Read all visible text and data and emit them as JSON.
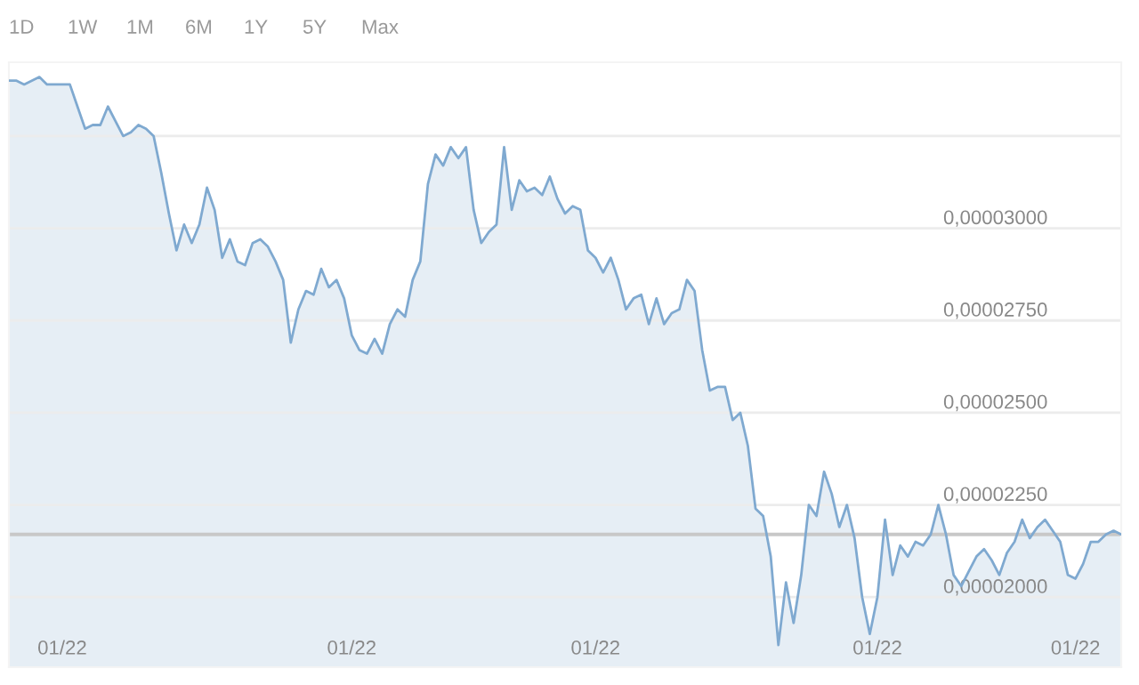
{
  "chart_data": {
    "type": "area",
    "annotations": [
      "1D",
      "1W",
      "1M",
      "6M",
      "1Y",
      "5Y",
      "Max"
    ],
    "categories": [
      null,
      null,
      null,
      null,
      null,
      null,
      null,
      "01/22",
      null,
      null,
      null,
      null,
      null,
      null,
      null,
      null,
      null,
      null,
      null,
      null,
      null,
      null,
      null,
      null,
      null,
      null,
      null,
      null,
      null,
      null,
      null,
      null,
      null,
      null,
      null,
      null,
      null,
      null,
      null,
      null,
      null,
      null,
      null,
      null,
      null,
      "01/22",
      null,
      null,
      null,
      null,
      null,
      null,
      null,
      null,
      null,
      null,
      null,
      null,
      null,
      null,
      null,
      null,
      null,
      null,
      null,
      null,
      null,
      null,
      null,
      null,
      null,
      null,
      null,
      null,
      null,
      null,
      null,
      "01/22",
      null,
      null,
      null,
      null,
      null,
      null,
      null,
      null,
      null,
      null,
      null,
      null,
      null,
      null,
      null,
      null,
      null,
      null,
      null,
      null,
      null,
      null,
      null,
      null,
      null,
      null,
      null,
      null,
      null,
      null,
      null,
      null,
      null,
      null,
      null,
      null,
      "01/22",
      null,
      null,
      null,
      null,
      null,
      null,
      null,
      null,
      null,
      null,
      null,
      null,
      null,
      null,
      null,
      null,
      null,
      null,
      null,
      null,
      null,
      null,
      null,
      null,
      null,
      "01/22",
      null,
      null,
      null,
      null,
      null,
      null
    ],
    "series": [
      {
        "color": "#7fa9d0",
        "values": [
          3.4e-05,
          3.4e-05,
          3.39e-05,
          3.4e-05,
          3.41e-05,
          3.39e-05,
          3.39e-05,
          3.39e-05,
          3.39e-05,
          3.33e-05,
          3.27e-05,
          3.28e-05,
          3.28e-05,
          3.33e-05,
          3.29e-05,
          3.25e-05,
          3.26e-05,
          3.28e-05,
          3.27e-05,
          3.25e-05,
          3.15e-05,
          3.04e-05,
          2.94e-05,
          3.01e-05,
          2.96e-05,
          3.01e-05,
          3.11e-05,
          3.05e-05,
          2.92e-05,
          2.97e-05,
          2.91e-05,
          2.9e-05,
          2.96e-05,
          2.97e-05,
          2.95e-05,
          2.91e-05,
          2.86e-05,
          2.69e-05,
          2.78e-05,
          2.83e-05,
          2.82e-05,
          2.89e-05,
          2.84e-05,
          2.86e-05,
          2.81e-05,
          2.71e-05,
          2.67e-05,
          2.66e-05,
          2.7e-05,
          2.66e-05,
          2.74e-05,
          2.78e-05,
          2.76e-05,
          2.86e-05,
          2.91e-05,
          3.12e-05,
          3.2e-05,
          3.17e-05,
          3.22e-05,
          3.19e-05,
          3.22e-05,
          3.05e-05,
          2.96e-05,
          2.99e-05,
          3.01e-05,
          3.22e-05,
          3.05e-05,
          3.13e-05,
          3.1e-05,
          3.11e-05,
          3.09e-05,
          3.14e-05,
          3.08e-05,
          3.04e-05,
          3.06e-05,
          3.05e-05,
          2.94e-05,
          2.92e-05,
          2.88e-05,
          2.92e-05,
          2.86e-05,
          2.78e-05,
          2.81e-05,
          2.82e-05,
          2.74e-05,
          2.81e-05,
          2.74e-05,
          2.77e-05,
          2.78e-05,
          2.86e-05,
          2.83e-05,
          2.67e-05,
          2.56e-05,
          2.57e-05,
          2.57e-05,
          2.48e-05,
          2.5e-05,
          2.41e-05,
          2.24e-05,
          2.22e-05,
          2.11e-05,
          1.87e-05,
          2.04e-05,
          1.93e-05,
          2.06e-05,
          2.25e-05,
          2.22e-05,
          2.34e-05,
          2.28e-05,
          2.19e-05,
          2.25e-05,
          2.16e-05,
          2e-05,
          1.9e-05,
          2e-05,
          2.21e-05,
          2.06e-05,
          2.14e-05,
          2.11e-05,
          2.15e-05,
          2.14e-05,
          2.17e-05,
          2.25e-05,
          2.17e-05,
          2.06e-05,
          2.03e-05,
          2.07e-05,
          2.11e-05,
          2.13e-05,
          2.1e-05,
          2.06e-05,
          2.12e-05,
          2.15e-05,
          2.21e-05,
          2.16e-05,
          2.19e-05,
          2.21e-05,
          2.18e-05,
          2.15e-05,
          2.06e-05,
          2.05e-05,
          2.09e-05,
          2.15e-05,
          2.15e-05,
          2.17e-05,
          2.18e-05,
          2.17e-05
        ]
      }
    ],
    "ylim": [
      1.81e-05,
      3.45e-05
    ],
    "yticks": [
      {
        "value": 2e-05,
        "label": "0,00002000"
      },
      {
        "value": 2.25e-05,
        "label": "0,00002250"
      },
      {
        "value": 2.5e-05,
        "label": "0,00002500"
      },
      {
        "value": 2.75e-05,
        "label": "0,00002750"
      },
      {
        "value": 3e-05,
        "label": "0,00003000"
      },
      {
        "value": 3.25e-05,
        "label": null
      }
    ],
    "ref_lines": [
      {
        "axis": "y",
        "value": 2.17e-05,
        "color": "#c8c8c8"
      }
    ],
    "grid": "y"
  }
}
